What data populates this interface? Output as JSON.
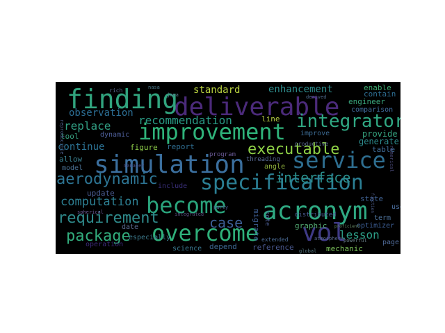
{
  "words": [
    {
      "text": "deliverable",
      "color": "#4b2a7a"
    },
    {
      "text": "finding",
      "color": "#31a47e"
    },
    {
      "text": "improvement",
      "color": "#2fb37a"
    },
    {
      "text": "simulation",
      "color": "#3b6f9e"
    },
    {
      "text": "service",
      "color": "#2e6e90"
    },
    {
      "text": "specification",
      "color": "#2b7f94"
    },
    {
      "text": "become",
      "color": "#2aa47c"
    },
    {
      "text": "acronym",
      "color": "#2fa982"
    },
    {
      "text": "overcome",
      "color": "#2fb07a"
    },
    {
      "text": "vol",
      "color": "#3f3a86"
    },
    {
      "text": "integrator",
      "color": "#30a883"
    },
    {
      "text": "aerodynamic",
      "color": "#2d7594"
    },
    {
      "text": "executable",
      "color": "#8ed046"
    },
    {
      "text": "interface",
      "color": "#2a8e8c"
    },
    {
      "text": "package",
      "color": "#32ad7d"
    },
    {
      "text": "requirement",
      "color": "#2f8b8c"
    },
    {
      "text": "case",
      "color": "#3d5f97"
    },
    {
      "text": "computation",
      "color": "#2d7f92"
    },
    {
      "text": "recommendation",
      "color": "#2a9c86"
    },
    {
      "text": "observation",
      "color": "#2c6e94"
    },
    {
      "text": "replace",
      "color": "#31a084"
    },
    {
      "text": "continue",
      "color": "#2c7294"
    },
    {
      "text": "standard",
      "color": "#bcd640"
    },
    {
      "text": "enhancement",
      "color": "#2e8e8e"
    },
    {
      "text": "lesson",
      "color": "#2c9d86"
    },
    {
      "text": "engineer",
      "color": "#3aa67c"
    },
    {
      "text": "comparison",
      "color": "#3f6a9a"
    },
    {
      "text": "provide",
      "color": "#35a27e"
    },
    {
      "text": "generate",
      "color": "#2d8b8c"
    },
    {
      "text": "enable",
      "color": "#3da86f"
    },
    {
      "text": "contain",
      "color": "#2e6f94"
    },
    {
      "text": "table",
      "color": "#3f6c97"
    },
    {
      "text": "dynamic",
      "color": "#4e5f9a"
    },
    {
      "text": "report",
      "color": "#2f6c8f"
    },
    {
      "text": "figure",
      "color": "#8fcf4a"
    },
    {
      "text": "tool",
      "color": "#37a07f"
    },
    {
      "text": "allow",
      "color": "#3a7f8f"
    },
    {
      "text": "model",
      "color": "#4a7092"
    },
    {
      "text": "update",
      "color": "#4c5e96"
    },
    {
      "text": "include",
      "color": "#3a2f7a"
    },
    {
      "text": "angle",
      "color": "#8fb13d"
    },
    {
      "text": "state",
      "color": "#3e5f8f"
    },
    {
      "text": "user",
      "color": "#4c6fa0"
    },
    {
      "text": "term",
      "color": "#5077a0"
    },
    {
      "text": "graphic",
      "color": "#52a870"
    },
    {
      "text": "page",
      "color": "#4f6a98"
    },
    {
      "text": "optimizer",
      "color": "#3d5f96"
    },
    {
      "text": "mechanic",
      "color": "#7ac05a"
    },
    {
      "text": "reference",
      "color": "#4b5a92"
    },
    {
      "text": "depend",
      "color": "#3e6a94"
    },
    {
      "text": "science",
      "color": "#3c7a92"
    },
    {
      "text": "date",
      "color": "#5a6a90"
    },
    {
      "text": "especially",
      "color": "#3f7f92"
    },
    {
      "text": "operation",
      "color": "#3d2a7a"
    },
    {
      "text": "program",
      "color": "#6a5a96"
    },
    {
      "text": "threading",
      "color": "#5a6c98"
    },
    {
      "text": "line",
      "color": "#b9d244"
    },
    {
      "text": "improve",
      "color": "#3d6c94"
    },
    {
      "text": "distributed",
      "color": "#4a5c94"
    },
    {
      "text": "migrate",
      "color": "#3a5a90"
    },
    {
      "text": "note",
      "color": "#4a5c90"
    },
    {
      "text": "extended",
      "color": "#4a6a94"
    },
    {
      "text": "productive",
      "color": "#5a6a8f"
    },
    {
      "text": "global",
      "color": "#5c7f8a"
    },
    {
      "text": "atmosphere",
      "color": "#5b6a8f"
    },
    {
      "text": "powerful",
      "color": "#6a7f8a"
    },
    {
      "text": "rich",
      "color": "#5b6a8f"
    },
    {
      "text": "nasa",
      "color": "#4f7e90"
    },
    {
      "text": "java",
      "color": "#5a7a90"
    },
    {
      "text": "spherical",
      "color": "#6a5a96"
    },
    {
      "text": "manager",
      "color": "#4a4f86"
    },
    {
      "text": "party",
      "color": "#4a5c8f"
    },
    {
      "text": "integrated",
      "color": "#5a5080"
    },
    {
      "text": "reproducible",
      "color": "#4a5a86"
    },
    {
      "text": "numerical",
      "color": "#4a4a7a"
    },
    {
      "text": "function",
      "color": "#4a5a86"
    },
    {
      "text": "derived",
      "color": "#4f6a8c"
    },
    {
      "text": "proficient",
      "color": "#6a8f6a"
    }
  ]
}
